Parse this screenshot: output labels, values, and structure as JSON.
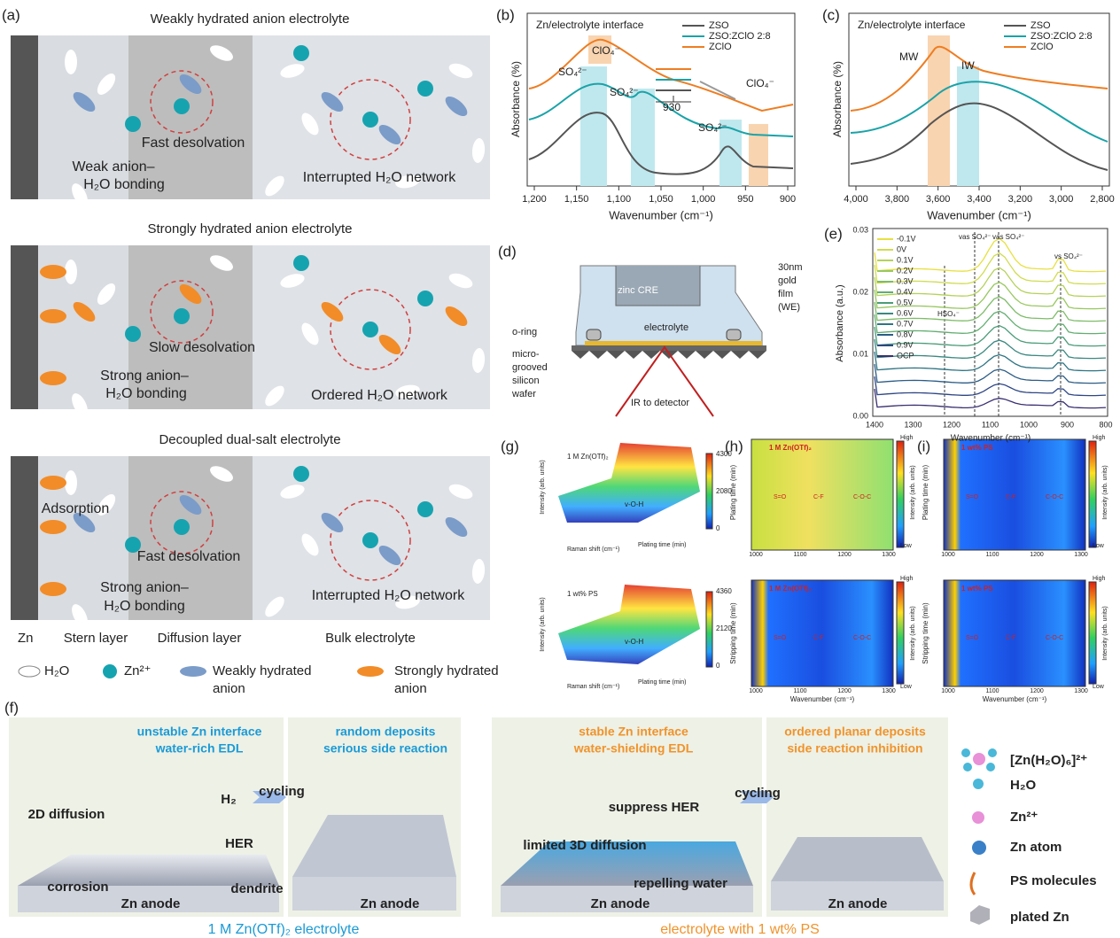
{
  "panel_a": {
    "label": "(a)",
    "rows": [
      {
        "title": "Weakly hydrated anion electrolyte",
        "notes": [
          "Fast desolvation",
          "Weak anion–",
          "H₂O bonding",
          "Interrupted H₂O network"
        ]
      },
      {
        "title": "Strongly hydrated anion electrolyte",
        "notes": [
          "Slow desolvation",
          "Strong anion–",
          "H₂O bonding",
          "Ordered H₂O network"
        ]
      },
      {
        "title": "Decoupled dual-salt electrolyte",
        "notes": [
          "Adsorption",
          "Fast desolvation",
          "Strong anion–",
          "H₂O bonding",
          "Interrupted H₂O network"
        ]
      }
    ],
    "regions": [
      "Zn",
      "Stern layer",
      "Diffusion layer",
      "Bulk electrolyte"
    ],
    "legend": [
      "H₂O",
      "Zn²⁺",
      "Weakly hydrated",
      "anion",
      "Strongly hydrated",
      "anion"
    ]
  },
  "panel_b": {
    "label": "(b)",
    "title": "Zn/electrolyte interface",
    "legend": [
      "ZSO",
      "ZSO:ZClO 2:8",
      "ZClO"
    ],
    "annotations": [
      "ClO₄⁻",
      "SO₄²⁻",
      "SO₄²⁻",
      "SO₄²⁻",
      "ClO₄⁻",
      "930"
    ],
    "xlabel": "Wavenumber (cm⁻¹)",
    "ylabel": "Absorbance (%)",
    "xticks": [
      "1,200",
      "1,150",
      "1,100",
      "1,050",
      "1,000",
      "950",
      "900"
    ]
  },
  "panel_c": {
    "label": "(c)",
    "title": "Zn/electrolyte interface",
    "legend": [
      "ZSO",
      "ZSO:ZClO 2:8",
      "ZClO"
    ],
    "annotations": [
      "MW",
      "IW"
    ],
    "xlabel": "Wavenumber (cm⁻¹)",
    "ylabel": "Absorbance (%)",
    "xticks": [
      "4,000",
      "3,800",
      "3,600",
      "3,400",
      "3,200",
      "3,000",
      "2,800"
    ]
  },
  "panel_d": {
    "label": "(d)",
    "labels": [
      "zinc CRE",
      "electrolyte",
      "30nm",
      "gold",
      "film",
      "(WE)",
      "o-ring",
      "micro-",
      "grooved",
      "silicon",
      "wafer",
      "IR to detector"
    ]
  },
  "panel_e": {
    "label": "(e)",
    "legend": [
      "-0.1V",
      "0V",
      "0.1V",
      "0.2V",
      "0.3V",
      "0.4V",
      "0.5V",
      "0.6V",
      "0.7V",
      "0.8V",
      "0.9V",
      "OCP"
    ],
    "annotations": [
      "vas SO₄²⁻",
      "vas SO₄²⁻",
      "vs SO₄²⁻",
      "HSO₄⁻"
    ],
    "ylabel": "Absorbance (a.u.)",
    "xlabel": "Wavenumber (cm⁻¹)",
    "yticks": [
      "0.00",
      "0.01",
      "0.02",
      "0.03"
    ],
    "xticks": [
      "1400",
      "1300",
      "1200",
      "1100",
      "1000",
      "900",
      "800"
    ]
  },
  "panel_g": {
    "label": "(g)",
    "plots": [
      {
        "tag": "1 M Zn(OTf)₂",
        "peak": "v-O-H",
        "cbar": [
          "4300",
          "2080",
          "0"
        ]
      },
      {
        "tag": "1 wt% PS",
        "peak": "v-O-H",
        "cbar": [
          "4360",
          "2120",
          "0"
        ]
      }
    ],
    "ylabel": "Intensity (arb. units)",
    "xlabel": "Raman shift (cm⁻¹)",
    "zlabel": "Plating time (min)"
  },
  "panel_h": {
    "label": "(h)",
    "tags": [
      "1 M Zn(OTf)₂",
      "1 M Zn(OTf)₂"
    ],
    "bands": [
      "S=O",
      "C-F",
      "C-O-C"
    ],
    "ylabels": [
      "Plating time (min)",
      "Stripping time (min)"
    ],
    "xlabel": "Wavenumber (cm⁻¹)",
    "xticks": [
      "1000",
      "1100",
      "1200",
      "1300"
    ],
    "cbar": [
      "High",
      "Low",
      "Intensity (arb. units)"
    ]
  },
  "panel_i": {
    "label": "(i)",
    "tags": [
      "1 wt% PS",
      "1 wt% PS"
    ],
    "bands": [
      "S=O",
      "C-F",
      "C-O-C"
    ],
    "ylabels": [
      "Plating time (min)",
      "Stripping time (min)"
    ],
    "xlabel": "Wavenumber (cm⁻¹)",
    "xticks": [
      "1000",
      "1100",
      "1200",
      "1300"
    ],
    "cbar": [
      "High",
      "Low",
      "Intensity (arb. units)"
    ]
  },
  "panel_f": {
    "label": "(f)",
    "heads": [
      "unstable Zn interface",
      "water-rich EDL",
      "random deposits",
      "serious side reaction",
      "stable Zn interface",
      "water-shielding EDL",
      "ordered planar deposits",
      "side reaction inhibition"
    ],
    "notes": [
      "2D diffusion",
      "H₂",
      "HER",
      "corrosion",
      "dendrite",
      "Zn anode",
      "cycling",
      "Zn anode",
      "suppress HER",
      "limited 3D diffusion",
      "repelling water",
      "Zn anode",
      "cycling",
      "Zn anode"
    ],
    "captions": [
      "1 M Zn(OTf)₂ electrolyte",
      "electrolyte with 1 wt% PS"
    ],
    "legend": [
      "[Zn(H₂O)₆]²⁺",
      "H₂O",
      "Zn²⁺",
      "Zn atom",
      "PS molecules",
      "plated Zn"
    ]
  }
}
